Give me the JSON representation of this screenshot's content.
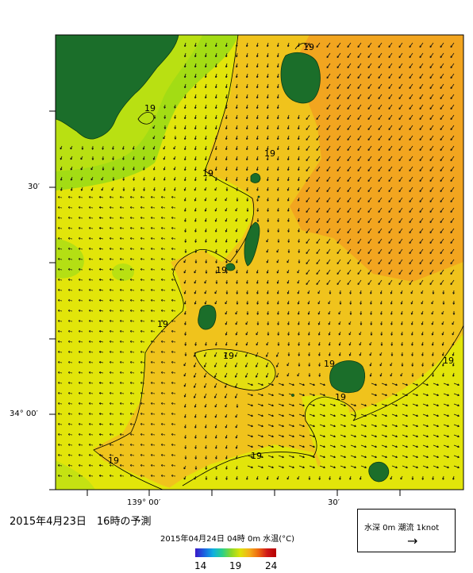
{
  "map": {
    "lon_ticks": [
      "139° 00′",
      "30′"
    ],
    "lat_ticks": [
      "30′",
      "34° 00′"
    ],
    "isotherm_label": "19",
    "colors": {
      "green_water": "#a3dc14",
      "yellow_green": "#c3e210",
      "yellow": "#e2e50a",
      "light_orange": "#f0c31c",
      "orange": "#f2a51f",
      "deep_orange": "#f49a1c",
      "land": "#1b6e2a",
      "arrow": "#000000"
    }
  },
  "footer": {
    "title": "2015年4月23日　16時の予測",
    "subtitle": "2015年04月24日 04時 0m 水温(°C)"
  },
  "legend": {
    "text": "水深 0m 潮流 1knot",
    "arrow": "→"
  },
  "colorbar": {
    "min_label": "14",
    "mid_label": "19",
    "max_label": "24",
    "stops": [
      "#3a18c8",
      "#1b63e0",
      "#10b0e0",
      "#2bd08a",
      "#8ad82a",
      "#dde20a",
      "#f4b01a",
      "#ee6a10",
      "#d01818",
      "#b40000"
    ]
  }
}
